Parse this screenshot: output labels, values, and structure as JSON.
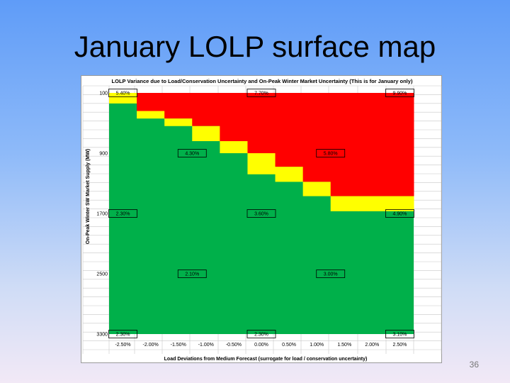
{
  "slide": {
    "title": "January LOLP surface map",
    "page_number": "36"
  },
  "colors": {
    "red": "#ff0000",
    "yellow": "#ffff00",
    "green": "#00b04a",
    "grid": "#c8c8c8",
    "label_border": "#000000"
  },
  "chart_data": {
    "type": "heatmap",
    "title": "LOLP Variance due to Load/Conservation Uncertainty and On-Peak Winter Market Uncertainty (This is for January only)",
    "xlabel": "Load Deviations from Medium Forecast (surrogate for load / conservation uncertainty)",
    "ylabel": "On-Peak Winter SW Market Supply (MW)",
    "x_ticks": [
      "-2.50%",
      "-2.00%",
      "-1.50%",
      "-1.00%",
      "-0.50%",
      "0.00%",
      "0.50%",
      "1.00%",
      "1.50%",
      "2.00%",
      "2.50%"
    ],
    "x_values": [
      -2.5,
      -2.0,
      -1.5,
      -1.0,
      -0.5,
      0.0,
      0.5,
      1.0,
      1.5,
      2.0,
      2.5
    ],
    "y_ticks": [
      "100",
      "900",
      "1700",
      "2500",
      "3300"
    ],
    "y_values": [
      100,
      900,
      1700,
      2500,
      3300
    ],
    "y_range": [
      100,
      3300
    ],
    "zones": {
      "red_yellow_boundary_mw": [
        100,
        340,
        440,
        540,
        740,
        900,
        1080,
        1280,
        1470,
        1470,
        1470
      ],
      "yellow_green_boundary_mw": [
        240,
        440,
        540,
        740,
        900,
        1180,
        1280,
        1470,
        1670,
        1670,
        1670
      ]
    },
    "annotations": [
      {
        "x": -2.5,
        "y": 100,
        "label": "5.40%"
      },
      {
        "x": 0.0,
        "y": 100,
        "label": "7.70%"
      },
      {
        "x": 2.5,
        "y": 100,
        "label": "9.90%"
      },
      {
        "x": -1.25,
        "y": 900,
        "label": "4.30%"
      },
      {
        "x": 1.25,
        "y": 900,
        "label": "5.80%"
      },
      {
        "x": -2.5,
        "y": 1700,
        "label": "2.30%"
      },
      {
        "x": 0.0,
        "y": 1700,
        "label": "3.60%"
      },
      {
        "x": 2.5,
        "y": 1700,
        "label": "4.90%"
      },
      {
        "x": -1.25,
        "y": 2500,
        "label": "2.10%"
      },
      {
        "x": 1.25,
        "y": 2500,
        "label": "3.00%"
      },
      {
        "x": -2.5,
        "y": 3300,
        "label": "2.30%"
      },
      {
        "x": 0.0,
        "y": 3300,
        "label": "2.30%"
      },
      {
        "x": 2.5,
        "y": 3300,
        "label": "3.10%"
      }
    ],
    "grid": true,
    "legend": "none"
  }
}
